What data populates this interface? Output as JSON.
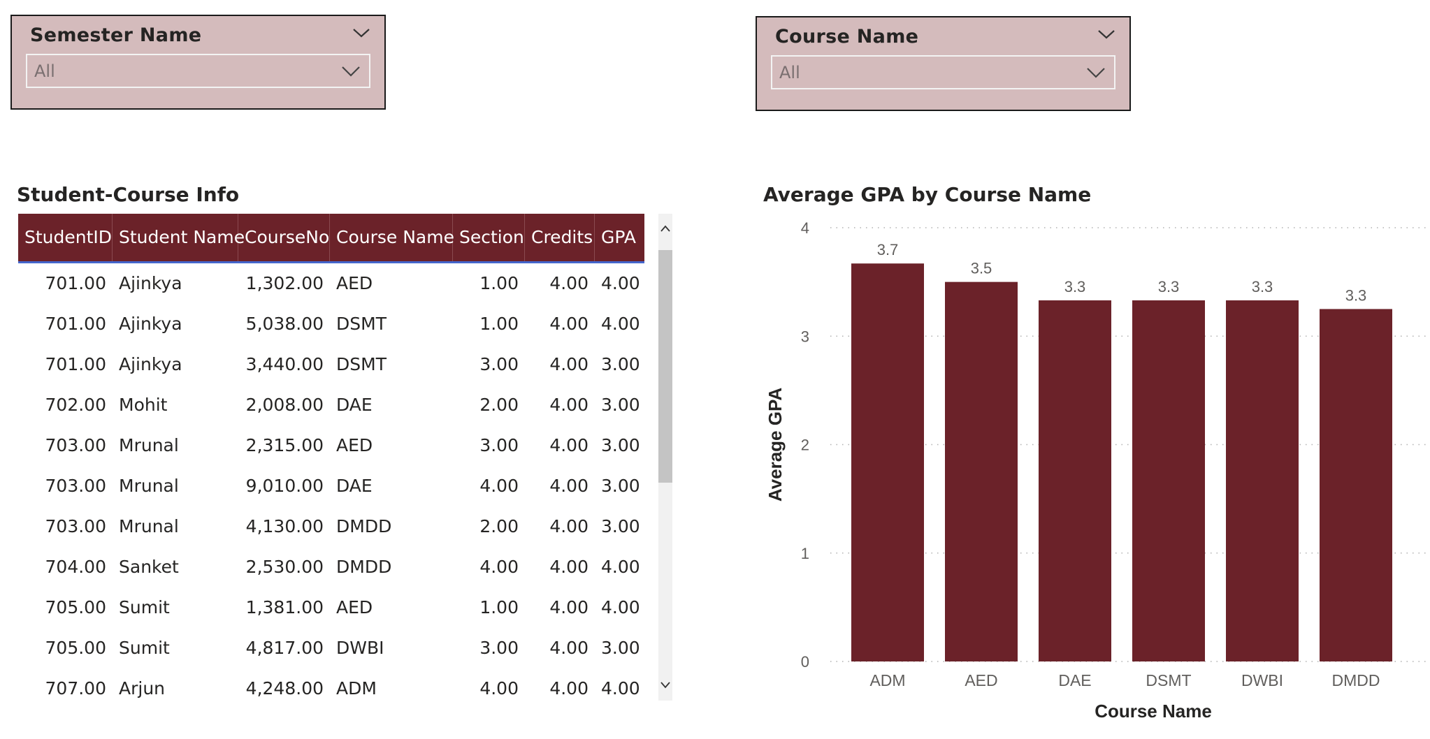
{
  "slicers": {
    "semester": {
      "title": "Semester Name",
      "value": "All"
    },
    "course": {
      "title": "Course Name",
      "value": "All"
    }
  },
  "table": {
    "title": "Student-Course Info",
    "columns": [
      "StudentID",
      "Student Name",
      "CourseNo",
      "Course Name",
      "Section",
      "Credits",
      "GPA"
    ],
    "rows": [
      [
        "701.00",
        "Ajinkya",
        "1,302.00",
        "AED",
        "1.00",
        "4.00",
        "4.00"
      ],
      [
        "701.00",
        "Ajinkya",
        "5,038.00",
        "DSMT",
        "1.00",
        "4.00",
        "4.00"
      ],
      [
        "701.00",
        "Ajinkya",
        "3,440.00",
        "DSMT",
        "3.00",
        "4.00",
        "3.00"
      ],
      [
        "702.00",
        "Mohit",
        "2,008.00",
        "DAE",
        "2.00",
        "4.00",
        "3.00"
      ],
      [
        "703.00",
        "Mrunal",
        "2,315.00",
        "AED",
        "3.00",
        "4.00",
        "3.00"
      ],
      [
        "703.00",
        "Mrunal",
        "9,010.00",
        "DAE",
        "4.00",
        "4.00",
        "3.00"
      ],
      [
        "703.00",
        "Mrunal",
        "4,130.00",
        "DMDD",
        "2.00",
        "4.00",
        "3.00"
      ],
      [
        "704.00",
        "Sanket",
        "2,530.00",
        "DMDD",
        "4.00",
        "4.00",
        "4.00"
      ],
      [
        "705.00",
        "Sumit",
        "1,381.00",
        "AED",
        "1.00",
        "4.00",
        "4.00"
      ],
      [
        "705.00",
        "Sumit",
        "4,817.00",
        "DWBI",
        "3.00",
        "4.00",
        "3.00"
      ],
      [
        "707.00",
        "Arjun",
        "4,248.00",
        "ADM",
        "4.00",
        "4.00",
        "4.00"
      ]
    ]
  },
  "chart_data": {
    "type": "bar",
    "title": "Average GPA by Course Name",
    "xlabel": "Course Name",
    "ylabel": "Average GPA",
    "categories": [
      "ADM",
      "AED",
      "DAE",
      "DSMT",
      "DWBI",
      "DMDD"
    ],
    "values": [
      3.67,
      3.5,
      3.33,
      3.33,
      3.33,
      3.25
    ],
    "data_labels": [
      "3.7",
      "3.5",
      "3.3",
      "3.3",
      "3.3",
      "3.3"
    ],
    "y_ticks": [
      "0",
      "1",
      "2",
      "3",
      "4"
    ],
    "ylim": [
      0,
      4
    ],
    "grid": true,
    "bar_color": "#6b2229"
  },
  "colors": {
    "slicer_bg": "#d4bbbc",
    "header_bg": "#6b2229",
    "bar": "#6b2229"
  },
  "icons": {
    "slicer_header": "chevron-down-icon",
    "slicer_dropdown": "chevron-down-icon",
    "scroll_up": "chevron-up-icon",
    "scroll_down": "chevron-down-icon"
  }
}
